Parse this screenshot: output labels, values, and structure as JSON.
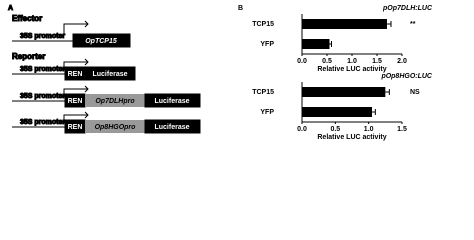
{
  "diagram": {
    "panel_a": "A",
    "effector_heading": "Effector",
    "reporter_heading": "Reporter",
    "promoter": "35S promoter",
    "effector_gene": "OpTCP15",
    "ren": "REN",
    "luciferase": "Luciferase",
    "reporter_promoters": [
      "Op7DLHpro",
      "Op8HGOpro"
    ]
  },
  "panel_b": "B",
  "chart_data": [
    {
      "type": "barh",
      "title": "pOp7DLH:LUC",
      "categories": [
        "TCP15",
        "YFP"
      ],
      "values": [
        1.7,
        0.55
      ],
      "errors": [
        0.08,
        0.04
      ],
      "significance": [
        "**",
        null
      ],
      "color": "#000000",
      "xlabel": "Relative LUC activity",
      "xlim": [
        0,
        2
      ],
      "xticks": [
        {
          "value": 0,
          "label": "0.0"
        },
        {
          "value": 0.5,
          "label": "0.5"
        },
        {
          "value": 1,
          "label": "1.0"
        },
        {
          "value": 1.5,
          "label": "1.5"
        },
        {
          "value": 2,
          "label": "2.0"
        }
      ]
    },
    {
      "type": "barh",
      "title": "pOp8HGO:LUC",
      "categories": [
        "TCP15",
        "YFP"
      ],
      "values": [
        1.25,
        1.05
      ],
      "errors": [
        0.06,
        0.05
      ],
      "significance": [
        "NS",
        null
      ],
      "color": "#000000",
      "xlabel": "Relative LUC activity",
      "xlim": [
        0,
        1.5
      ],
      "xticks": [
        {
          "value": 0,
          "label": "0.0"
        },
        {
          "value": 0.5,
          "label": "0.5"
        },
        {
          "value": 1,
          "label": "1.0"
        },
        {
          "value": 1.5,
          "label": "1.5"
        }
      ]
    }
  ]
}
